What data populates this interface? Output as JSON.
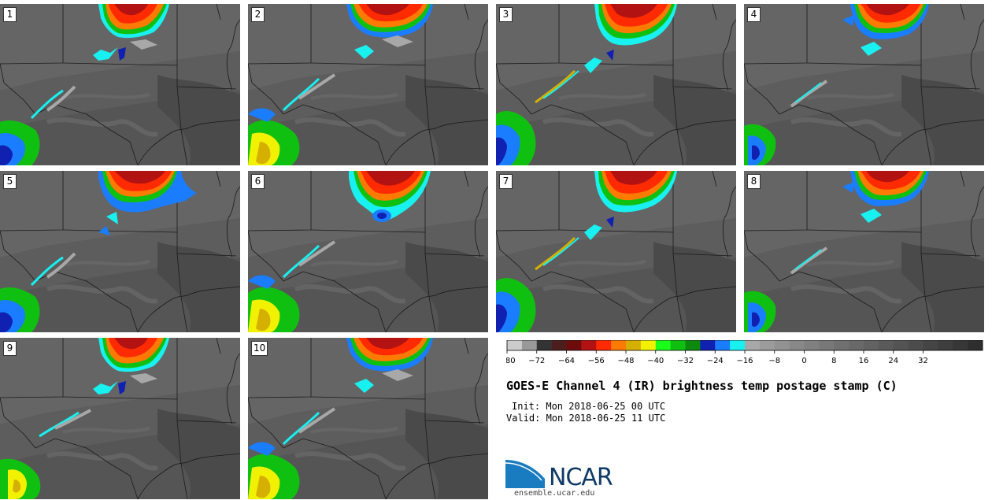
{
  "panels": [
    {
      "label": "1"
    },
    {
      "label": "2"
    },
    {
      "label": "3"
    },
    {
      "label": "4"
    },
    {
      "label": "5"
    },
    {
      "label": "6"
    },
    {
      "label": "7"
    },
    {
      "label": "8"
    },
    {
      "label": "9"
    },
    {
      "label": "10"
    }
  ],
  "colorbar": {
    "colors": [
      "#cccccc",
      "#999999",
      "#333333",
      "#4b1d1d",
      "#6e0c0c",
      "#b31212",
      "#ff2a00",
      "#ff7a00",
      "#d6b000",
      "#f2f200",
      "#19ff19",
      "#10c010",
      "#0d8a0d",
      "#1020b0",
      "#1a7cff",
      "#19f0f0",
      "#a8a8a8",
      "#9c9c9c",
      "#929292",
      "#888888",
      "#808080",
      "#787878",
      "#707070",
      "#696969",
      "#626262",
      "#5a5a5a",
      "#535353",
      "#4c4c4c",
      "#454545",
      "#3e3e3e",
      "#373737",
      "#2e2e2e"
    ],
    "ticks": [
      "−80",
      "−72",
      "−64",
      "−56",
      "−48",
      "−40",
      "−32",
      "−24",
      "−16",
      "−8",
      "0",
      "8",
      "16",
      "24",
      "32"
    ]
  },
  "title": "GOES-E Channel 4 (IR) brightness temp postage stamp (C)",
  "init": "Init: Mon 2018-06-25 00 UTC",
  "valid": "Valid: Mon 2018-06-25 11 UTC",
  "logo": {
    "text": "NCAR",
    "color": "#0f3a66",
    "accent": "#1a7cc0"
  },
  "url": "ensemble.ucar.edu"
}
